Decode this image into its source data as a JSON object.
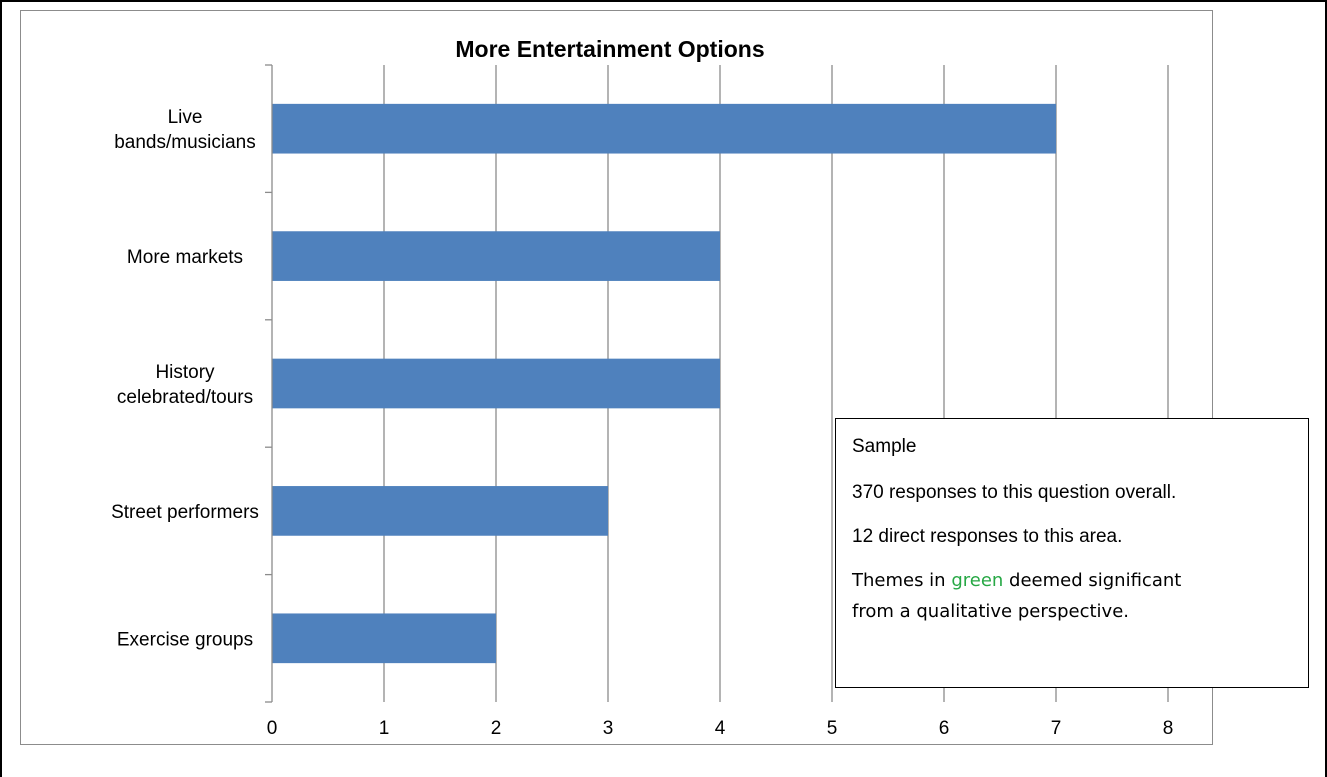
{
  "chart_data": {
    "type": "bar",
    "orientation": "horizontal",
    "title": "More Entertainment Options",
    "categories": [
      "Live bands/musicians",
      "More markets",
      "History celebrated/tours",
      "Street performers",
      "Exercise groups"
    ],
    "category_label_lines": [
      [
        "Live",
        "bands/musicians"
      ],
      [
        "More markets"
      ],
      [
        "History",
        "celebrated/tours"
      ],
      [
        "Street performers"
      ],
      [
        "Exercise groups"
      ]
    ],
    "values": [
      7,
      4,
      4,
      3,
      2
    ],
    "xlim": [
      0,
      8
    ],
    "x_ticks": [
      "0",
      "1",
      "2",
      "3",
      "4",
      "5",
      "6",
      "7",
      "8"
    ],
    "xlabel": "",
    "ylabel": "",
    "grid": "vertical",
    "bar_color": "#4f81bd",
    "gridline_color": "#8c8c8c"
  },
  "note": {
    "heading": "Sample",
    "line1": "370 responses to this question overall.",
    "line2": "12 direct responses to this area.",
    "themes_prefix": "Themes in ",
    "themes_green": "green",
    "themes_suffix": " deemed significant",
    "themes_line2": "from a qualitative perspective.",
    "green_color": "#27a845"
  }
}
